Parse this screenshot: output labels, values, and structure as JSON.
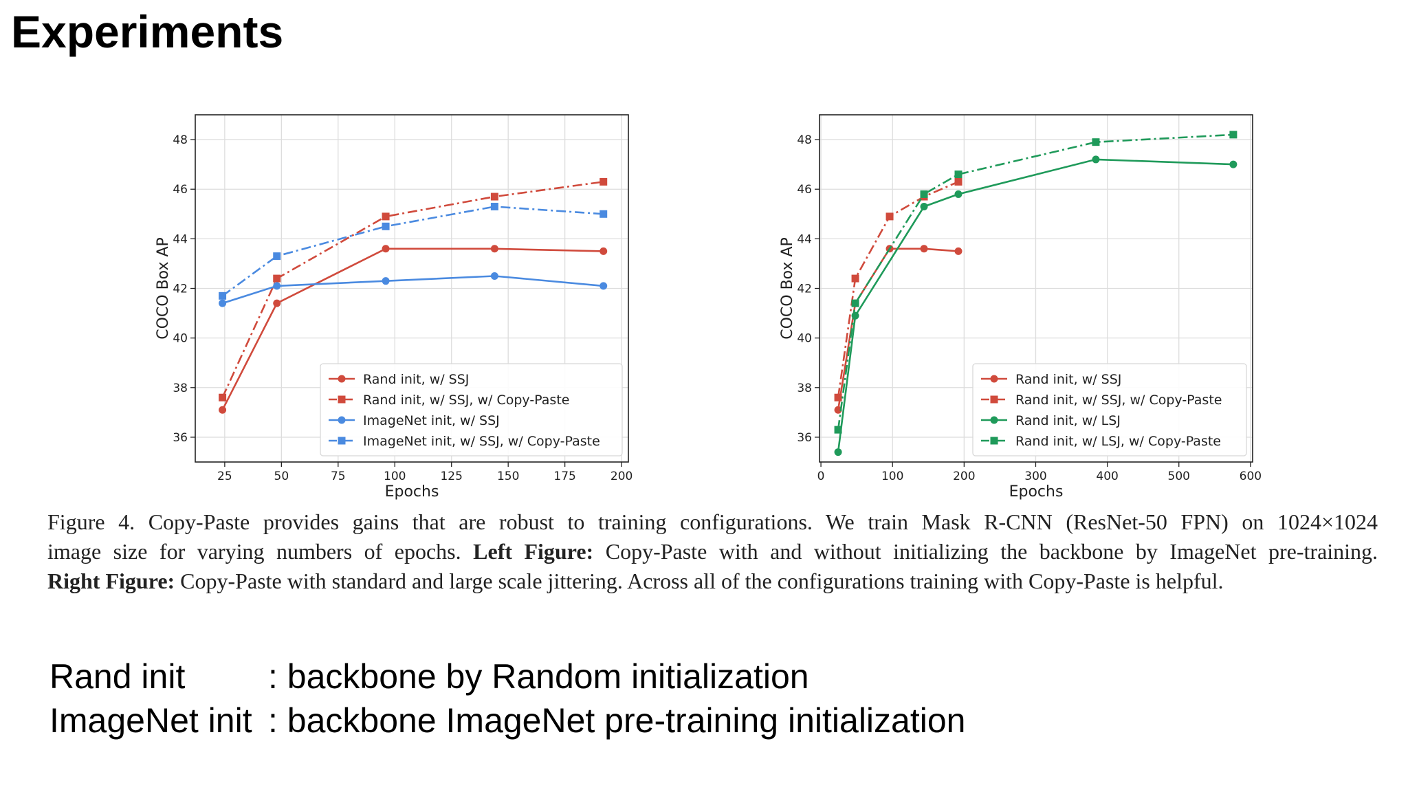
{
  "slide": {
    "title": "Experiments"
  },
  "chart_data": [
    {
      "type": "line",
      "xlabel": "Epochs",
      "ylabel": "COCO Box AP",
      "xlim": [
        12,
        203
      ],
      "ylim": [
        35.0,
        49.0
      ],
      "xticks": [
        25,
        50,
        75,
        100,
        125,
        150,
        175,
        200
      ],
      "yticks": [
        36,
        38,
        40,
        42,
        44,
        46,
        48
      ],
      "grid": true,
      "legend_position": "lower-right",
      "series": [
        {
          "name": "Rand init, w/ SSJ",
          "color": "#d04a3c",
          "dash": "solid",
          "marker": "circle",
          "x": [
            24,
            48,
            96,
            144,
            192
          ],
          "y": [
            37.1,
            41.4,
            43.6,
            43.6,
            43.5
          ]
        },
        {
          "name": "Rand init, w/ SSJ, w/ Copy-Paste",
          "color": "#d04a3c",
          "dash": "dashdot",
          "marker": "square",
          "x": [
            24,
            48,
            96,
            144,
            192
          ],
          "y": [
            37.6,
            42.4,
            44.9,
            45.7,
            46.3
          ]
        },
        {
          "name": "ImageNet init, w/ SSJ",
          "color": "#4a8ae0",
          "dash": "solid",
          "marker": "circle",
          "x": [
            24,
            48,
            96,
            144,
            192
          ],
          "y": [
            41.4,
            42.1,
            42.3,
            42.5,
            42.1
          ]
        },
        {
          "name": "ImageNet init, w/ SSJ, w/ Copy-Paste",
          "color": "#4a8ae0",
          "dash": "dashdot",
          "marker": "square",
          "x": [
            24,
            48,
            96,
            144,
            192
          ],
          "y": [
            41.7,
            43.3,
            44.5,
            45.3,
            45.0
          ]
        }
      ]
    },
    {
      "type": "line",
      "xlabel": "Epochs",
      "ylabel": "COCO Box AP",
      "xlim": [
        -2,
        603
      ],
      "ylim": [
        35.0,
        49.0
      ],
      "xticks": [
        0,
        100,
        200,
        300,
        400,
        500,
        600
      ],
      "yticks": [
        36,
        38,
        40,
        42,
        44,
        46,
        48
      ],
      "grid": true,
      "legend_position": "lower-right",
      "series": [
        {
          "name": "Rand init, w/ SSJ",
          "color": "#d04a3c",
          "dash": "solid",
          "marker": "circle",
          "x": [
            24,
            48,
            96,
            144,
            192
          ],
          "y": [
            37.1,
            41.4,
            43.6,
            43.6,
            43.5
          ]
        },
        {
          "name": "Rand init, w/ SSJ, w/ Copy-Paste",
          "color": "#d04a3c",
          "dash": "dashdot",
          "marker": "square",
          "x": [
            24,
            48,
            96,
            144,
            192
          ],
          "y": [
            37.6,
            42.4,
            44.9,
            45.7,
            46.3
          ]
        },
        {
          "name": "Rand init, w/ LSJ",
          "color": "#1f9a5a",
          "dash": "solid",
          "marker": "circle",
          "x": [
            24,
            48,
            144,
            192,
            384,
            576
          ],
          "y": [
            35.4,
            40.9,
            45.3,
            45.8,
            47.2,
            47.0
          ]
        },
        {
          "name": "Rand init, w/ LSJ, w/ Copy-Paste",
          "color": "#1f9a5a",
          "dash": "dashdot",
          "marker": "square",
          "x": [
            24,
            48,
            144,
            192,
            384,
            576
          ],
          "y": [
            36.3,
            41.4,
            45.8,
            46.6,
            47.9,
            48.2
          ]
        }
      ]
    }
  ],
  "caption": {
    "line1": "Figure 4. Copy-Paste provides gains that are robust to training configurations.  We train Mask R-CNN (ResNet-50 FPN) on 1024×1024",
    "line2_pre": "image size for varying numbers of epochs.",
    "line2_bold": "Left Figure:",
    "line2_post": "Copy-Paste with and without initializing the backbone by ImageNet pre-training.",
    "line3_bold": "Right Figure:",
    "line3_post": "Copy-Paste with standard and large scale jittering. Across all of the configurations training with Copy-Paste is helpful."
  },
  "notes": [
    {
      "term": "Rand init",
      "definition": ": backbone by Random initialization"
    },
    {
      "term": "ImageNet init",
      "definition": " : backbone ImageNet pre-training initialization"
    }
  ]
}
